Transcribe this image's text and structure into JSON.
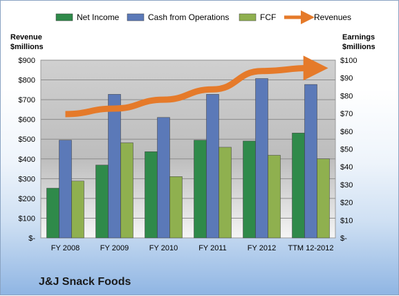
{
  "company": "J&J Snack Foods",
  "chart_data": {
    "type": "bar",
    "categories": [
      "FY 2008",
      "FY 2009",
      "FY 2010",
      "FY 2011",
      "FY 2012",
      "TTM 12-2012"
    ],
    "series": [
      {
        "name": "Net Income",
        "axis": "right",
        "color": "#2f8a4a",
        "values": [
          28,
          41,
          48.5,
          55,
          54.5,
          59
        ]
      },
      {
        "name": "Cash from Operations",
        "axis": "left",
        "color": "#5b79b8",
        "values": [
          495,
          727,
          610,
          727,
          807,
          777
        ]
      },
      {
        "name": "FCF",
        "axis": "right",
        "color": "#8fb04f",
        "values": [
          32,
          53.5,
          34.5,
          51,
          46.5,
          44.5
        ]
      },
      {
        "name": "Revenues",
        "axis": "left",
        "type": "line",
        "color": "#e57a2a",
        "values": [
          627,
          655,
          700,
          752,
          845,
          860
        ]
      }
    ],
    "left_axis": {
      "label_line1": "Revenue",
      "label_line2": "$millions",
      "ylim": [
        0,
        900
      ],
      "ticks": [
        "$-",
        "$100",
        "$200",
        "$300",
        "$400",
        "$500",
        "$600",
        "$700",
        "$800",
        "$900"
      ]
    },
    "right_axis": {
      "label_line1": "Earnings",
      "label_line2": "$millions",
      "ylim": [
        0,
        100
      ],
      "ticks": [
        "$-",
        "$10",
        "$20",
        "$30",
        "$40",
        "$50",
        "$60",
        "$70",
        "$80",
        "$90",
        "$100"
      ]
    },
    "legend_position": "top",
    "grid": true
  }
}
